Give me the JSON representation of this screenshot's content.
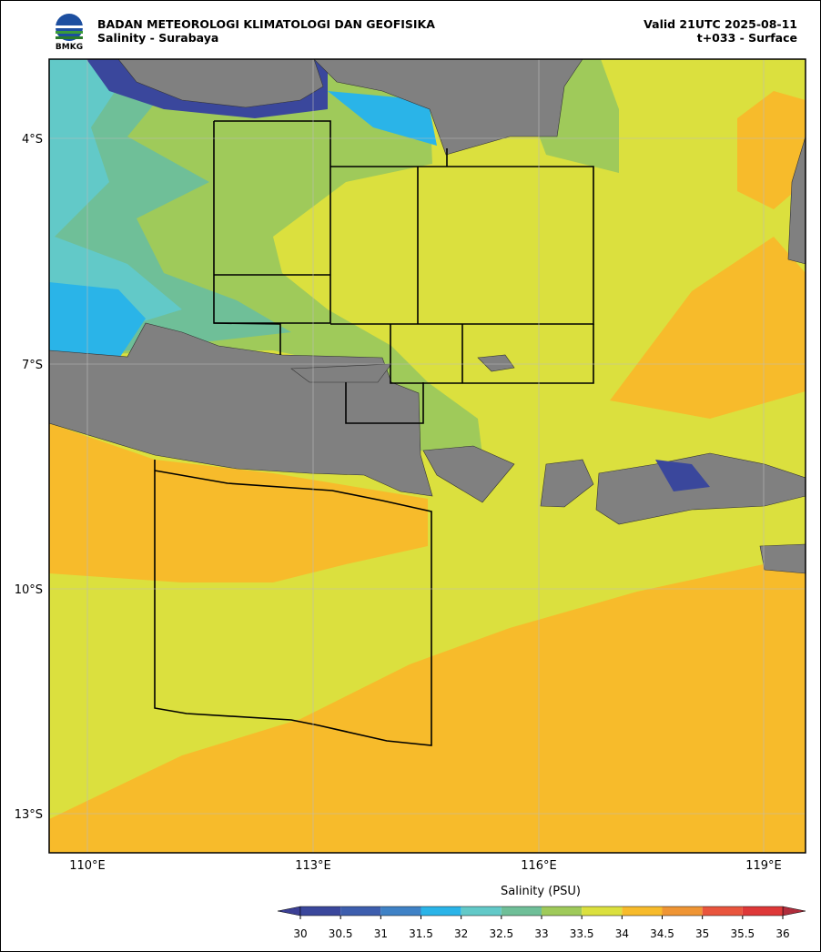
{
  "header": {
    "logo": "BMKG",
    "title": "BADAN METEOROLOGI KLIMATOLOGI DAN GEOFISIKA",
    "subtitle": "Salinity - Surabaya",
    "valid": "Valid 21UTC 2025-08-11",
    "lead": "t+033 - Surface"
  },
  "map": {
    "lon_labels": [
      "110°E",
      "113°E",
      "116°E",
      "119°E"
    ],
    "lat_labels": [
      "4°S",
      "7°S",
      "10°S",
      "13°S"
    ]
  },
  "colorbar": {
    "label": "Salinity (PSU)",
    "ticks": [
      30,
      30.5,
      31,
      31.5,
      32,
      32.5,
      33,
      33.5,
      34,
      34.5,
      35,
      35.5,
      36
    ],
    "colors": [
      "#3a479c",
      "#3d5eae",
      "#3f82c6",
      "#2ab4e8",
      "#62c9c8",
      "#6fbf98",
      "#9fca5a",
      "#dbe03e",
      "#f7bb2b",
      "#ef9534",
      "#e9553d",
      "#de3838"
    ],
    "under_color": "#3b3f95",
    "over_color": "#b02d3c"
  }
}
